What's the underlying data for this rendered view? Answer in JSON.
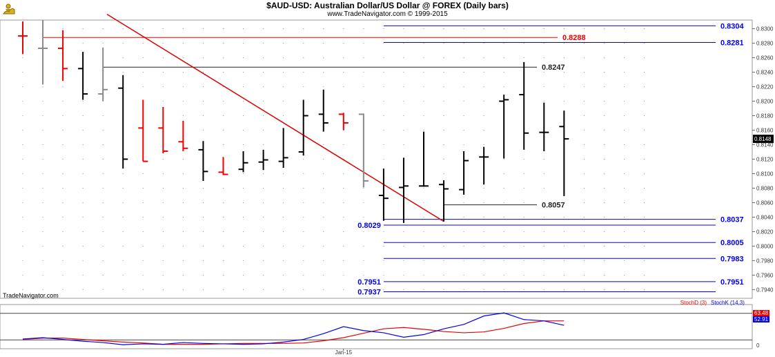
{
  "header": {
    "title": "$AUD-USD:  Australian Dollar/US Dollar @ FOREX  (Daily bars)",
    "subtitle": "www.TradeNavigator.com © 1999-2015"
  },
  "watermark": "TradeNavigator.com",
  "chart_data": [
    {
      "type": "ohlc",
      "grid": true,
      "y_ticks": [
        "0.8300",
        "0.8280",
        "0.8260",
        "0.8240",
        "0.8220",
        "0.8200",
        "0.8180",
        "0.8160",
        "0.8140",
        "0.8120",
        "0.8100",
        "0.8080",
        "0.8060",
        "0.8040",
        "0.8020",
        "0.8000",
        "0.7980",
        "0.7960",
        "0.7940"
      ],
      "ylim": [
        0.7928,
        0.8312
      ],
      "current_price_label": "0.8148",
      "x_label": "Jan-15",
      "x_label_bar": 16,
      "bars": [
        {
          "o": 0.829,
          "h": 0.831,
          "l": 0.8265,
          "c": 0.829,
          "color": "red"
        },
        {
          "o": 0.8273,
          "h": 0.8312,
          "l": 0.8223,
          "c": 0.8273,
          "color": "gray"
        },
        {
          "o": 0.8273,
          "h": 0.8298,
          "l": 0.8228,
          "c": 0.8245,
          "color": "red"
        },
        {
          "o": 0.8245,
          "h": 0.8268,
          "l": 0.8202,
          "c": 0.821,
          "color": "black"
        },
        {
          "o": 0.821,
          "h": 0.8274,
          "l": 0.82,
          "c": 0.8216,
          "color": "gray"
        },
        {
          "o": 0.8218,
          "h": 0.8236,
          "l": 0.8107,
          "c": 0.812,
          "color": "black"
        },
        {
          "o": 0.8163,
          "h": 0.8202,
          "l": 0.8117,
          "c": 0.8117,
          "color": "red"
        },
        {
          "o": 0.8163,
          "h": 0.8192,
          "l": 0.8128,
          "c": 0.8131,
          "color": "red"
        },
        {
          "o": 0.8144,
          "h": 0.8173,
          "l": 0.8131,
          "c": 0.8135,
          "color": "red"
        },
        {
          "o": 0.8133,
          "h": 0.8145,
          "l": 0.809,
          "c": 0.8103,
          "color": "black"
        },
        {
          "o": 0.8102,
          "h": 0.8123,
          "l": 0.8098,
          "c": 0.8099,
          "color": "red"
        },
        {
          "o": 0.8106,
          "h": 0.8131,
          "l": 0.8102,
          "c": 0.8115,
          "color": "black"
        },
        {
          "o": 0.8116,
          "h": 0.8133,
          "l": 0.8105,
          "c": 0.8119,
          "color": "black"
        },
        {
          "o": 0.8117,
          "h": 0.8163,
          "l": 0.8108,
          "c": 0.8122,
          "color": "black"
        },
        {
          "o": 0.813,
          "h": 0.8202,
          "l": 0.8125,
          "c": 0.818,
          "color": "black"
        },
        {
          "o": 0.8182,
          "h": 0.8216,
          "l": 0.8158,
          "c": 0.817,
          "color": "black"
        },
        {
          "o": 0.8182,
          "h": 0.8184,
          "l": 0.816,
          "c": 0.817,
          "color": "red"
        },
        {
          "o": 0.8182,
          "h": 0.8183,
          "l": 0.8081,
          "c": 0.809,
          "color": "gray"
        },
        {
          "o": 0.807,
          "h": 0.8107,
          "l": 0.8035,
          "c": 0.8066,
          "color": "black"
        },
        {
          "o": 0.8081,
          "h": 0.8122,
          "l": 0.8032,
          "c": 0.8083,
          "color": "black"
        },
        {
          "o": 0.8083,
          "h": 0.8158,
          "l": 0.8082,
          "c": 0.8083,
          "color": "black"
        },
        {
          "o": 0.8085,
          "h": 0.8091,
          "l": 0.8034,
          "c": 0.8079,
          "color": "black"
        },
        {
          "o": 0.8078,
          "h": 0.8131,
          "l": 0.8071,
          "c": 0.8118,
          "color": "black"
        },
        {
          "o": 0.8123,
          "h": 0.8137,
          "l": 0.8085,
          "c": 0.8123,
          "color": "black"
        },
        {
          "o": 0.82,
          "h": 0.8209,
          "l": 0.8121,
          "c": 0.8202,
          "color": "black"
        },
        {
          "o": 0.8209,
          "h": 0.8254,
          "l": 0.8133,
          "c": 0.8156,
          "color": "black"
        },
        {
          "o": 0.8157,
          "h": 0.8198,
          "l": 0.8131,
          "c": 0.8157,
          "color": "black"
        },
        {
          "o": 0.8165,
          "h": 0.8187,
          "l": 0.8069,
          "c": 0.8148,
          "color": "black"
        }
      ],
      "level_lines": [
        {
          "value": 0.8304,
          "label": "0.8304",
          "color": "#0000ee",
          "from_bar": 18
        },
        {
          "value": 0.8288,
          "label": "0.8288",
          "color": "#ee0000",
          "from_bar": 1
        },
        {
          "value": 0.8281,
          "label": "0.8281",
          "color": "#0000ee",
          "from_bar": 18
        },
        {
          "value": 0.8247,
          "label": "0.8247",
          "color": "#222222",
          "from_bar": 4
        },
        {
          "value": 0.8057,
          "label": "0.8057",
          "color": "#222222",
          "from_bar": 21
        },
        {
          "value": 0.8037,
          "label": "0.8037",
          "color": "#0000ee",
          "from_bar": 18
        },
        {
          "value": 0.8029,
          "label": "0.8029",
          "color": "#0000ee",
          "from_bar": 18,
          "label_left": true
        },
        {
          "value": 0.8005,
          "label": "0.8005",
          "color": "#0000ee",
          "from_bar": 18
        },
        {
          "value": 0.7983,
          "label": "0.7983",
          "color": "#0000ee",
          "from_bar": 18
        },
        {
          "value": 0.7951,
          "label": "0.7951",
          "color": "#0000ee",
          "from_bar": 18,
          "label_both": true
        },
        {
          "value": 0.7937,
          "label": "0.7937",
          "color": "#0000ee",
          "from_bar": 18,
          "label_left": true
        }
      ],
      "trendline": {
        "from": {
          "bar": 4.2,
          "value": 0.832
        },
        "to": {
          "bar": 21,
          "value": 0.8034
        },
        "color": "#dd0000"
      }
    },
    {
      "type": "line",
      "ylim": [
        0,
        100
      ],
      "y_ticks": [
        "0"
      ],
      "legend": [
        "StochD (3)",
        "StochK (14,3)"
      ],
      "current_values": [
        "63.48",
        "52.91"
      ],
      "series": [
        {
          "name": "StochD (3)",
          "color": "#ee0000",
          "values": [
            21,
            24,
            24,
            21,
            18,
            15,
            13,
            10,
            10,
            10,
            11,
            12,
            12,
            12,
            13,
            18,
            25,
            35,
            45,
            48,
            44,
            39,
            36,
            38,
            46,
            57,
            63,
            63
          ]
        },
        {
          "name": "StochK (14,3)",
          "color": "#0000ee",
          "values": [
            22,
            25,
            21,
            17,
            14,
            9,
            11,
            10,
            14,
            12,
            11,
            10,
            11,
            15,
            21,
            34,
            50,
            41,
            36,
            26,
            32,
            45,
            55,
            74,
            81,
            66,
            63,
            53
          ]
        }
      ]
    }
  ]
}
